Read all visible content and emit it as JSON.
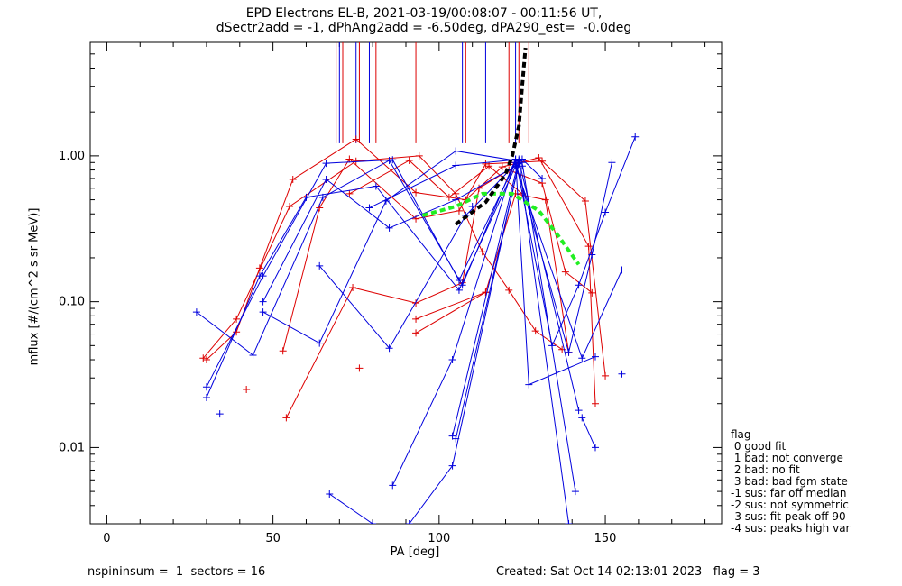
{
  "chart_data": {
    "type": "scatter",
    "title_line1": "EPD Electrons EL-B, 2021-03-19/00:08:07 - 00:11:56 UT,",
    "title_line2": "dSectr2add = -1, dPhAng2add = -6.50deg, dPA290_est=  -0.0deg",
    "xlabel": "PA [deg]",
    "ylabel": "mflux [#/(cm^2 s sr MeV)]",
    "xlim": [
      -5,
      185
    ],
    "ylim": [
      0.003,
      6.0
    ],
    "yscale": "log",
    "x_ticks": [
      0,
      50,
      100,
      150
    ],
    "x_tick_labels": [
      "0",
      "50",
      "100",
      "150"
    ],
    "y_ticks": [
      0.01,
      0.1,
      1.0
    ],
    "y_tick_labels": [
      "0.01",
      "0.10",
      "1.00"
    ],
    "colors": {
      "red": "#dd0000",
      "blue": "#0000dd",
      "black": "#000000",
      "green": "#22ee22"
    },
    "red_vlines": [
      69,
      71,
      76,
      81,
      93,
      108,
      121,
      124,
      127
    ],
    "blue_vlines": [
      70,
      75,
      79,
      107,
      114,
      123
    ],
    "red_series": [
      [
        [
          29,
          0.041
        ],
        [
          39,
          0.076
        ],
        [
          55,
          0.45
        ],
        [
          75,
          0.92
        ],
        [
          94,
          1.0
        ],
        [
          105,
          0.55
        ],
        [
          113,
          0.22
        ],
        [
          121,
          0.12
        ],
        [
          129,
          0.063
        ],
        [
          137,
          0.047
        ]
      ],
      [
        [
          30,
          0.04
        ],
        [
          39,
          0.062
        ],
        [
          46,
          0.17
        ],
        [
          56,
          0.69
        ],
        [
          75,
          1.3
        ],
        [
          93,
          0.56
        ],
        [
          108,
          0.5
        ],
        [
          119,
          0.84
        ],
        [
          130,
          0.97
        ],
        [
          145,
          0.24
        ],
        [
          147,
          0.02
        ]
      ],
      [
        [
          53,
          0.046
        ],
        [
          64,
          0.44
        ],
        [
          73,
          0.95
        ],
        [
          93,
          0.37
        ],
        [
          106,
          0.42
        ],
        [
          114,
          0.88
        ],
        [
          131,
          0.92
        ],
        [
          144,
          0.49
        ],
        [
          150,
          0.031
        ]
      ],
      [
        [
          54,
          0.016
        ],
        [
          74,
          0.125
        ],
        [
          93,
          0.098
        ],
        [
          107,
          0.135
        ],
        [
          112,
          0.6
        ],
        [
          121,
          0.8
        ],
        [
          131,
          0.65
        ],
        [
          138,
          0.16
        ],
        [
          146,
          0.115
        ]
      ],
      [
        [
          93,
          0.061
        ],
        [
          114,
          0.116
        ],
        [
          123,
          0.55
        ],
        [
          132,
          0.5
        ],
        [
          139,
          0.045
        ]
      ],
      [
        [
          73,
          0.55
        ],
        [
          91,
          0.93
        ],
        [
          103,
          0.52
        ],
        [
          115,
          0.85
        ],
        [
          125,
          0.55
        ]
      ],
      [
        [
          93,
          0.076
        ],
        [
          114,
          0.116
        ]
      ]
    ],
    "red_points": [
      [
        42,
        0.025
      ],
      [
        76,
        0.035
      ]
    ],
    "blue_series": [
      [
        [
          27,
          0.085
        ],
        [
          44,
          0.043
        ],
        [
          65,
          0.52
        ],
        [
          85,
          0.93
        ],
        [
          107,
          0.13
        ],
        [
          123,
          0.95
        ],
        [
          134,
          0.05
        ],
        [
          142,
          0.13
        ],
        [
          150,
          0.41
        ],
        [
          159,
          1.35
        ]
      ],
      [
        [
          30,
          0.026
        ],
        [
          47,
          0.15
        ],
        [
          66,
          0.89
        ],
        [
          86,
          0.94
        ],
        [
          106,
          0.14
        ],
        [
          123,
          0.9
        ],
        [
          139,
          0.045
        ],
        [
          146,
          0.21
        ],
        [
          152,
          0.9
        ]
      ],
      [
        [
          30,
          0.022
        ],
        [
          46,
          0.15
        ],
        [
          60,
          0.52
        ],
        [
          81,
          0.62
        ],
        [
          106,
          0.12
        ],
        [
          123,
          0.85
        ],
        [
          143,
          0.041
        ],
        [
          155,
          0.165
        ]
      ],
      [
        [
          47,
          0.1
        ],
        [
          66,
          0.69
        ],
        [
          85,
          0.32
        ],
        [
          105,
          0.5
        ],
        [
          125,
          0.9
        ],
        [
          141,
          0.005
        ]
      ],
      [
        [
          47,
          0.085
        ],
        [
          64,
          0.052
        ],
        [
          84,
          0.49
        ],
        [
          105,
          1.08
        ],
        [
          124,
          0.92
        ],
        [
          139,
          0.003
        ]
      ],
      [
        [
          64,
          0.176
        ],
        [
          85,
          0.048
        ],
        [
          108,
          0.39
        ],
        [
          124,
          0.93
        ],
        [
          142,
          0.018
        ]
      ],
      [
        [
          79,
          0.44
        ],
        [
          105,
          0.86
        ],
        [
          125,
          0.95
        ],
        [
          131,
          0.7
        ]
      ],
      [
        [
          86,
          0.0055
        ],
        [
          104,
          0.04
        ],
        [
          123,
          0.95
        ],
        [
          127,
          0.027
        ],
        [
          147,
          0.042
        ]
      ],
      [
        [
          91,
          0.003
        ],
        [
          104,
          0.0075
        ],
        [
          124,
          0.9
        ]
      ],
      [
        [
          67,
          0.0048
        ],
        [
          80,
          0.003
        ]
      ],
      [
        [
          104,
          0.012
        ],
        [
          124,
          0.95
        ]
      ],
      [
        [
          105,
          0.0115
        ],
        [
          124,
          0.88
        ]
      ],
      [
        [
          147,
          0.01
        ],
        [
          143,
          0.016
        ]
      ]
    ],
    "blue_points": [
      [
        34,
        0.017
      ],
      [
        155,
        0.032
      ],
      [
        125,
        0.85
      ],
      [
        110,
        0.45
      ]
    ],
    "black_fit": [
      [
        105,
        0.34
      ],
      [
        114,
        0.48
      ],
      [
        120,
        0.75
      ],
      [
        122,
        1.0
      ],
      [
        124,
        1.6
      ],
      [
        125,
        3.0
      ],
      [
        126,
        5.5
      ]
    ],
    "green_fit": [
      [
        95,
        0.39
      ],
      [
        105,
        0.45
      ],
      [
        113,
        0.55
      ],
      [
        122,
        0.55
      ],
      [
        130,
        0.42
      ],
      [
        136,
        0.28
      ],
      [
        142,
        0.18
      ]
    ]
  },
  "footer": {
    "left": "nspininsum =  1  sectors = 16",
    "right": "Created: Sat Oct 14 02:13:01 2023   flag = 3"
  },
  "legend": {
    "title": "flag",
    "items": [
      " 0 good fit",
      " 1 bad: not converge",
      " 2 bad: no fit",
      " 3 bad: bad fgm state",
      "-1 sus: far off median",
      "-2 sus: not symmetric",
      "-3 sus: fit peak off 90",
      "-4 sus: peaks high var"
    ]
  }
}
